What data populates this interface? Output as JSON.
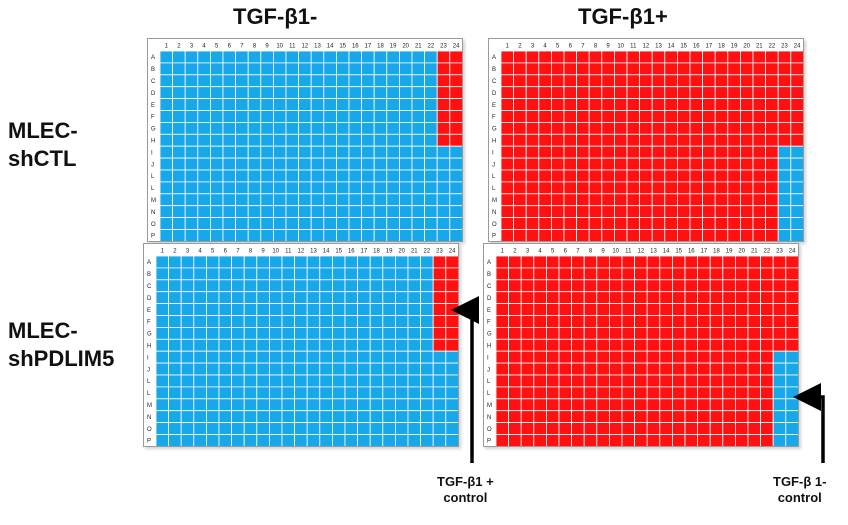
{
  "columns": [
    "TGF-β1-",
    "TGF-β1+"
  ],
  "rows": [
    {
      "line1": "MLEC-",
      "line2": "shCTL"
    },
    {
      "line1": "MLEC-",
      "line2": "shPDLIM5"
    }
  ],
  "plate_layout": {
    "column_labels": [
      "1",
      "2",
      "3",
      "4",
      "5",
      "6",
      "7",
      "8",
      "9",
      "10",
      "11",
      "12",
      "13",
      "14",
      "15",
      "16",
      "17",
      "18",
      "19",
      "20",
      "21",
      "22",
      "23",
      "24"
    ],
    "row_labels": [
      "A",
      "B",
      "C",
      "D",
      "E",
      "F",
      "G",
      "H",
      "I",
      "J",
      "L",
      "L",
      "M",
      "N",
      "O",
      "P"
    ]
  },
  "colors": {
    "blue": "#18a8ea",
    "red": "#ff1111"
  },
  "plates": [
    {
      "id": "shctl-minus",
      "main_color": "blue",
      "control_color": "red",
      "control_cols": [
        23,
        24
      ],
      "control_rows": [
        1,
        8
      ]
    },
    {
      "id": "shctl-plus",
      "main_color": "red",
      "control_color": "blue",
      "control_cols": [
        23,
        24
      ],
      "control_rows": [
        9,
        16
      ]
    },
    {
      "id": "shpdlim5-minus",
      "main_color": "blue",
      "control_color": "red",
      "control_cols": [
        23,
        24
      ],
      "control_rows": [
        1,
        8
      ]
    },
    {
      "id": "shpdlim5-plus",
      "main_color": "red",
      "control_color": "blue",
      "control_cols": [
        23,
        24
      ],
      "control_rows": [
        9,
        16
      ]
    }
  ],
  "callouts": [
    {
      "line1": "TGF-β1 +",
      "line2": "control"
    },
    {
      "line1": "TGF-β 1-",
      "line2": "control"
    }
  ]
}
